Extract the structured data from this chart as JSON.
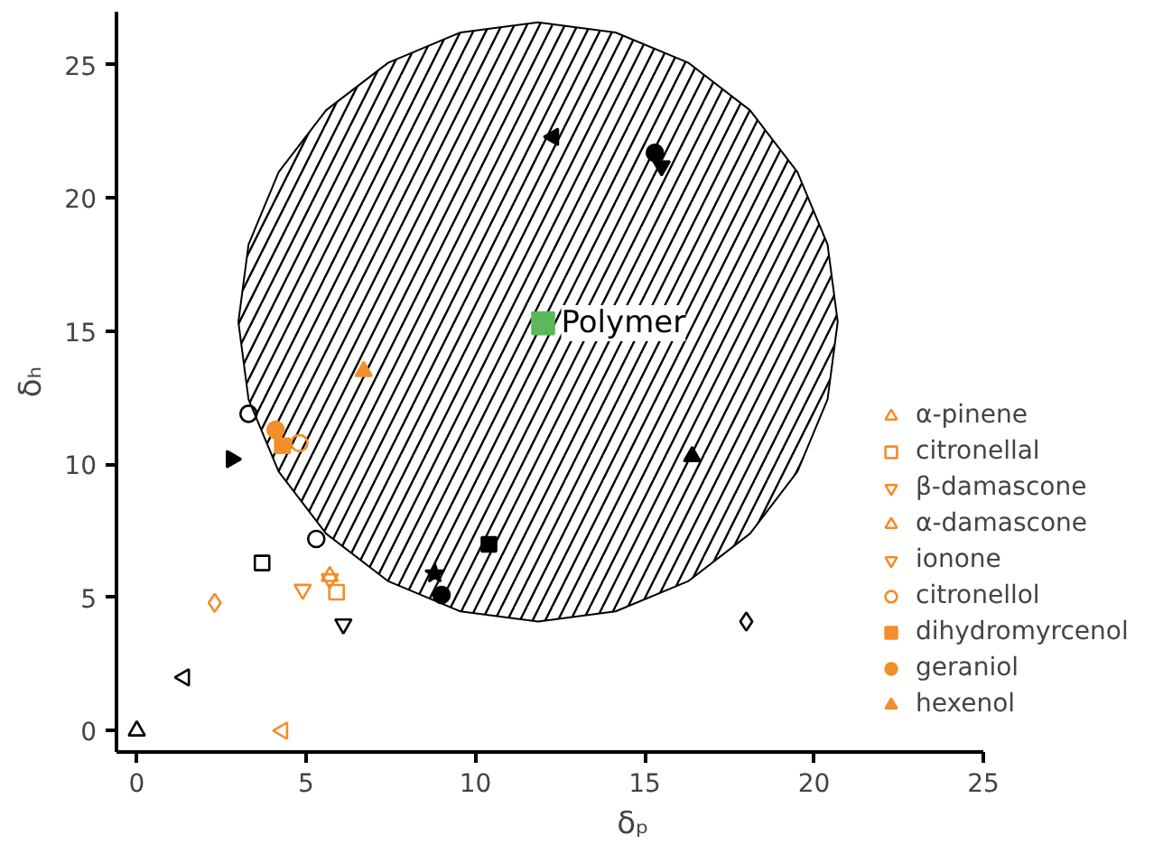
{
  "chart_data": {
    "type": "scatter",
    "xlabel": "δₚ",
    "ylabel": "δₕ",
    "xlim": [
      -0.6,
      25
    ],
    "ylim": [
      -0.8,
      27
    ],
    "xticks": [
      0,
      5,
      10,
      15,
      20,
      25
    ],
    "yticks": [
      0,
      5,
      10,
      15,
      20,
      25
    ],
    "grid": false,
    "legend": "right",
    "series": [
      {
        "type": "area",
        "color": "#000000",
        "x": [
          20.7,
          20.4,
          19.51,
          18.11,
          16.28,
          14.14,
          11.85,
          9.56,
          7.43,
          5.59,
          4.19,
          3.3,
          3.0,
          3.3,
          4.19,
          5.59,
          7.43,
          9.56,
          11.85,
          14.14,
          16.28,
          18.11,
          19.51,
          20.4
        ],
        "values": [
          15.35,
          18.26,
          20.98,
          23.3,
          25.09,
          26.22,
          26.6,
          26.22,
          25.09,
          23.3,
          20.98,
          18.26,
          15.35,
          12.44,
          9.73,
          7.4,
          5.61,
          4.48,
          4.1,
          4.48,
          5.61,
          7.4,
          9.73,
          12.44
        ]
      },
      {
        "name": "Polymer",
        "color": "#5cb85c",
        "marker": "square",
        "x": [
          12.0
        ],
        "values": [
          15.3
        ]
      },
      {
        "color": "#000000",
        "marker": "triangle-open",
        "x": [
          0.0
        ],
        "values": [
          0.0
        ]
      },
      {
        "color": "#000000",
        "marker": "triangle-left-open",
        "x": [
          1.4
        ],
        "values": [
          2.0
        ]
      },
      {
        "color": "#000000",
        "marker": "diamond-open",
        "x": [
          18.0
        ],
        "values": [
          4.1
        ]
      },
      {
        "color": "#000000",
        "marker": "square-open",
        "x": [
          3.7
        ],
        "values": [
          6.3
        ]
      },
      {
        "color": "#000000",
        "marker": "circle-open",
        "x": [
          5.3,
          3.3
        ],
        "values": [
          7.2,
          11.9
        ]
      },
      {
        "color": "#000000",
        "marker": "triangle-down-open",
        "x": [
          6.1
        ],
        "values": [
          4.0
        ]
      },
      {
        "color": "#000000",
        "marker": "triangle-right",
        "x": [
          2.8
        ],
        "values": [
          10.2
        ]
      },
      {
        "color": "#000000",
        "marker": "star",
        "x": [
          8.8
        ],
        "values": [
          5.9
        ]
      },
      {
        "color": "#000000",
        "marker": "circle",
        "x": [
          9.0,
          15.3
        ],
        "values": [
          5.1,
          21.7
        ]
      },
      {
        "color": "#000000",
        "marker": "square",
        "x": [
          10.4
        ],
        "values": [
          7.0
        ]
      },
      {
        "color": "#000000",
        "marker": "triangle",
        "x": [
          16.4
        ],
        "values": [
          10.3
        ]
      },
      {
        "color": "#000000",
        "marker": "triangle-left",
        "x": [
          12.3
        ],
        "values": [
          22.3
        ]
      },
      {
        "color": "#000000",
        "marker": "triangle-down",
        "x": [
          15.5
        ],
        "values": [
          21.2
        ]
      },
      {
        "name": "α-pinene",
        "color": "#f28e2b",
        "marker": "triangle-left-open",
        "x": [
          4.3
        ],
        "values": [
          0.0
        ]
      },
      {
        "color": "#f28e2b",
        "marker": "diamond-open",
        "x": [
          2.3
        ],
        "values": [
          4.8
        ]
      },
      {
        "name": "citronellal",
        "color": "#f28e2b",
        "marker": "square-open",
        "x": [
          5.9
        ],
        "values": [
          5.2
        ]
      },
      {
        "name": "β-damascone",
        "color": "#f28e2b",
        "marker": "triangle-down-open",
        "x": [
          4.9
        ],
        "values": [
          5.3
        ]
      },
      {
        "name": "α-damascone",
        "color": "#f28e2b",
        "marker": "triangle-open",
        "x": [
          5.7
        ],
        "values": [
          5.8
        ]
      },
      {
        "name": "ionone",
        "color": "#f28e2b",
        "marker": "triangle-down-open",
        "x": [
          5.7
        ],
        "values": [
          5.7
        ]
      },
      {
        "name": "citronellol",
        "color": "#f28e2b",
        "marker": "circle-open",
        "x": [
          4.8
        ],
        "values": [
          10.8
        ]
      },
      {
        "name": "dihydromyrcenol",
        "color": "#f28e2b",
        "marker": "square",
        "x": [
          4.3
        ],
        "values": [
          10.7
        ]
      },
      {
        "name": "geraniol",
        "color": "#f28e2b",
        "marker": "circle",
        "x": [
          4.1
        ],
        "values": [
          11.3
        ]
      },
      {
        "name": "hexenol",
        "color": "#f28e2b",
        "marker": "triangle",
        "x": [
          6.7
        ],
        "values": [
          13.5
        ]
      }
    ]
  }
}
